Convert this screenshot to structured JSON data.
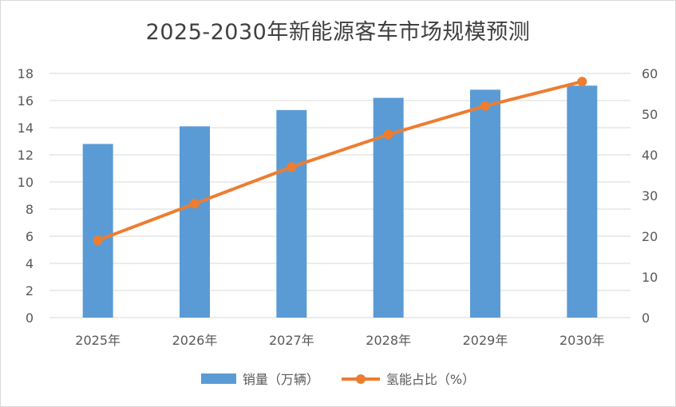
{
  "chart_data": {
    "type": "bar",
    "title": "2025-2030年新能源客车市场规模预测",
    "categories": [
      "2025年",
      "2026年",
      "2027年",
      "2028年",
      "2029年",
      "2030年"
    ],
    "series": [
      {
        "name": "销量（万辆）",
        "type": "bar",
        "axis": "left",
        "values": [
          12.8,
          14.1,
          15.3,
          16.2,
          16.8,
          17.1
        ],
        "color": "#5b9bd5"
      },
      {
        "name": "氢能占比（%）",
        "type": "line",
        "axis": "right",
        "values": [
          19,
          28,
          37,
          45,
          52,
          58
        ],
        "color": "#ed7d31"
      }
    ],
    "y_left": {
      "ylim": [
        0,
        18
      ],
      "ticks": [
        "0",
        "2",
        "4",
        "6",
        "8",
        "10",
        "12",
        "14",
        "16",
        "18"
      ]
    },
    "y_right": {
      "ylim": [
        0,
        60
      ],
      "ticks": [
        "0",
        "10",
        "20",
        "30",
        "40",
        "50",
        "60"
      ]
    },
    "grid": true,
    "legend_position": "bottom"
  }
}
